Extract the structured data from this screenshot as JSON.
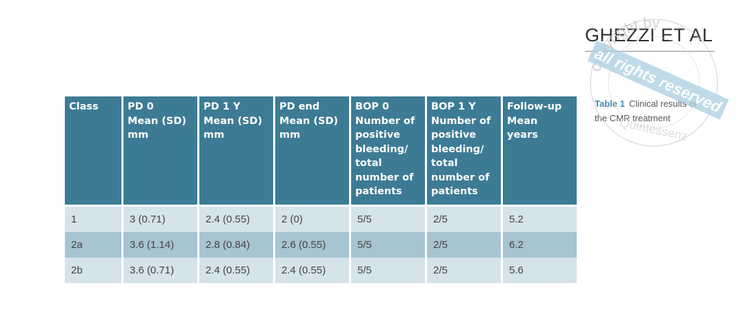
{
  "header": {
    "author": "GHEZZI ET AL"
  },
  "caption": {
    "label": "Table 1",
    "text": "Clinical results of the CMR treatment"
  },
  "watermark": {
    "band_text": "all rights reserved",
    "ring_text": "copyright by Quintessenz"
  },
  "table": {
    "headers": [
      "Class",
      "PD 0\nMean (SD)\nmm",
      "PD 1 Y\nMean (SD)\nmm",
      "PD end\nMean (SD)\nmm",
      "BOP 0\nNumber of\npositive\nbleeding/\ntotal\nnumber of\npatients",
      "BOP 1 Y\nNumber of\npositive\nbleeding/\ntotal\nnumber of\npatients",
      "Follow-up\nMean years"
    ],
    "rows": [
      [
        "1",
        "3 (0.71)",
        "2.4 (0.55)",
        "2 (0)",
        "5/5",
        "2/5",
        "5.2"
      ],
      [
        "2a",
        "3.6 (1.14)",
        "2.8 (0.84)",
        "2.6 (0.55)",
        "5/5",
        "2/5",
        "6.2"
      ],
      [
        "2b",
        "3.6 (0.71)",
        "2.4 (0.55)",
        "2.4 (0.55)",
        "5/5",
        "2/5",
        "5.6"
      ]
    ]
  },
  "colors": {
    "header_bg": "#3d7b95",
    "row_light": "#d5e3ea",
    "row_dark": "#a7c4d1",
    "caption_label": "#3b8fb0"
  }
}
